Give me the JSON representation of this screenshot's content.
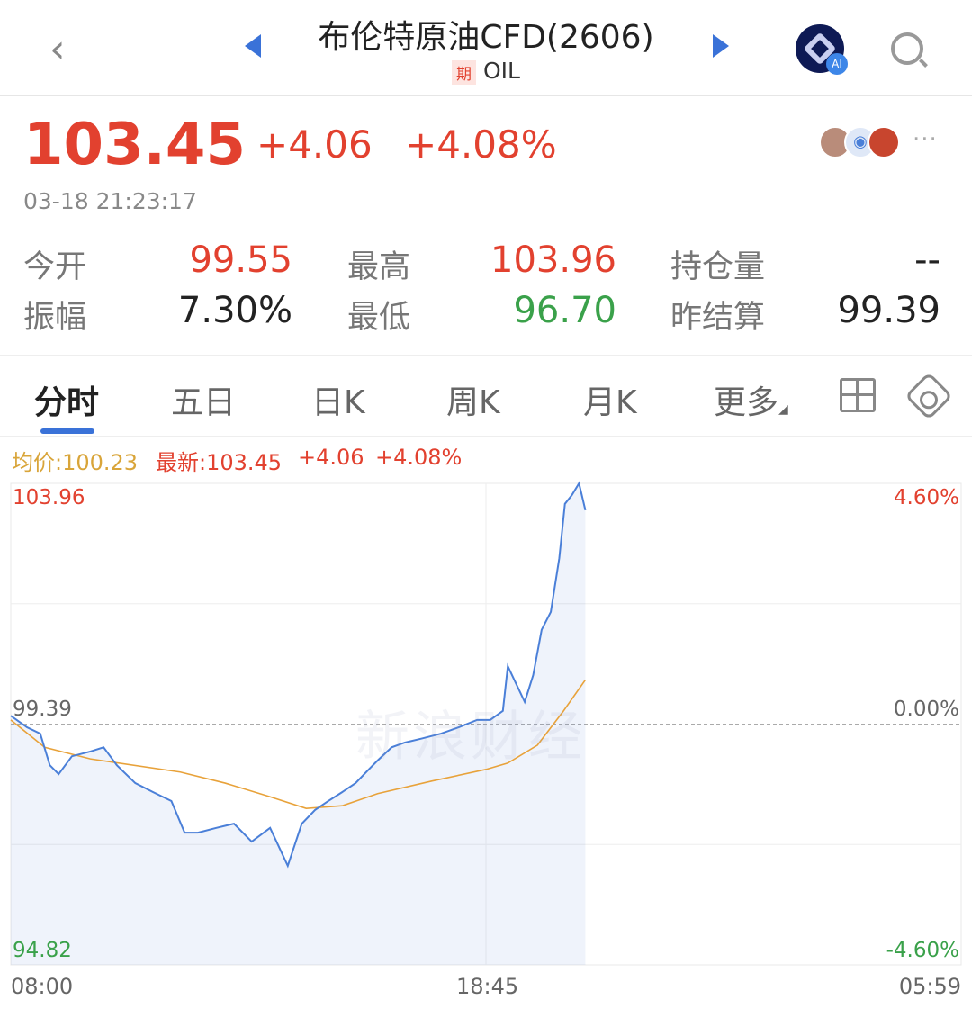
{
  "header": {
    "title": "布伦特原油CFD(2606)",
    "badge": "期",
    "code": "OIL",
    "icons": [
      "back-icon",
      "prev-arrow-icon",
      "next-arrow-icon",
      "ai-assistant-icon",
      "search-icon"
    ]
  },
  "quote": {
    "price": "103.45",
    "change": "+4.06",
    "change_pct": "+4.08%",
    "time": "03-18 21:23:17",
    "more": "···"
  },
  "stats": [
    {
      "label": "今开",
      "value": "99.55",
      "color": "red"
    },
    {
      "label": "最高",
      "value": "103.96",
      "color": "red"
    },
    {
      "label": "持仓量",
      "value": "--",
      "color": "dark"
    },
    {
      "label": "振幅",
      "value": "7.30%",
      "color": "dark"
    },
    {
      "label": "最低",
      "value": "96.70",
      "color": "green"
    },
    {
      "label": "昨结算",
      "value": "99.39",
      "color": "dark"
    }
  ],
  "tabs": [
    {
      "label": "分时",
      "active": true
    },
    {
      "label": "五日"
    },
    {
      "label": "日K"
    },
    {
      "label": "周K"
    },
    {
      "label": "月K"
    },
    {
      "label": "更多"
    }
  ],
  "legend": {
    "avg": "均价:100.23",
    "latest": "最新:103.45",
    "change": "+4.06",
    "pct": "+4.08%"
  },
  "watermark": "新浪财经",
  "colors": {
    "up": "#e2412f",
    "down": "#3aa14a",
    "price_line": "#4a7fd8",
    "avg_line": "#e8a23a",
    "accent": "#3a72d8"
  },
  "chart_data": {
    "type": "line",
    "y_left_labels": [
      "103.96",
      "99.39",
      "94.82"
    ],
    "y_right_labels": [
      "4.60%",
      "0.00%",
      "-4.60%"
    ],
    "x_labels": [
      "08:00",
      "18:45",
      "05:59"
    ],
    "ylim": [
      94.82,
      103.96
    ],
    "reference": 99.39,
    "grid": true,
    "series": [
      {
        "key": "price",
        "x": [
          "08:00",
          "08:22",
          "08:40",
          "08:53",
          "09:05",
          "09:23",
          "09:48",
          "10:06",
          "10:24",
          "10:49",
          "11:13",
          "11:38",
          "11:56",
          "12:14",
          "12:39",
          "13:03",
          "13:27",
          "13:52",
          "14:16",
          "14:35",
          "14:53",
          "15:11",
          "15:30",
          "15:48",
          "16:06",
          "16:18",
          "16:37",
          "16:55",
          "17:19",
          "17:44",
          "18:08",
          "18:33",
          "18:51",
          "19:09",
          "19:16",
          "19:28",
          "19:40",
          "19:52",
          "20:04",
          "20:17",
          "20:29",
          "20:37",
          "20:47",
          "20:57",
          "21:06"
        ],
        "values": [
          99.55,
          99.33,
          99.21,
          98.61,
          98.44,
          98.78,
          98.87,
          98.95,
          98.61,
          98.27,
          98.1,
          97.93,
          97.33,
          97.33,
          97.42,
          97.5,
          97.16,
          97.42,
          96.7,
          97.5,
          97.76,
          97.93,
          98.1,
          98.27,
          98.53,
          98.7,
          98.95,
          99.04,
          99.12,
          99.21,
          99.33,
          99.47,
          99.47,
          99.64,
          100.49,
          100.15,
          99.81,
          100.32,
          101.18,
          101.52,
          102.54,
          103.57,
          103.74,
          103.96,
          103.45
        ]
      },
      {
        "key": "average",
        "x": [
          "08:00",
          "08:46",
          "09:48",
          "11:50",
          "12:51",
          "13:52",
          "14:41",
          "15:30",
          "16:18",
          "17:32",
          "18:45",
          "19:16",
          "19:58",
          "20:35",
          "21:06"
        ],
        "values": [
          99.47,
          98.95,
          98.73,
          98.48,
          98.27,
          98.01,
          97.79,
          97.84,
          98.07,
          98.31,
          98.53,
          98.65,
          98.99,
          99.64,
          100.23
        ]
      }
    ]
  }
}
